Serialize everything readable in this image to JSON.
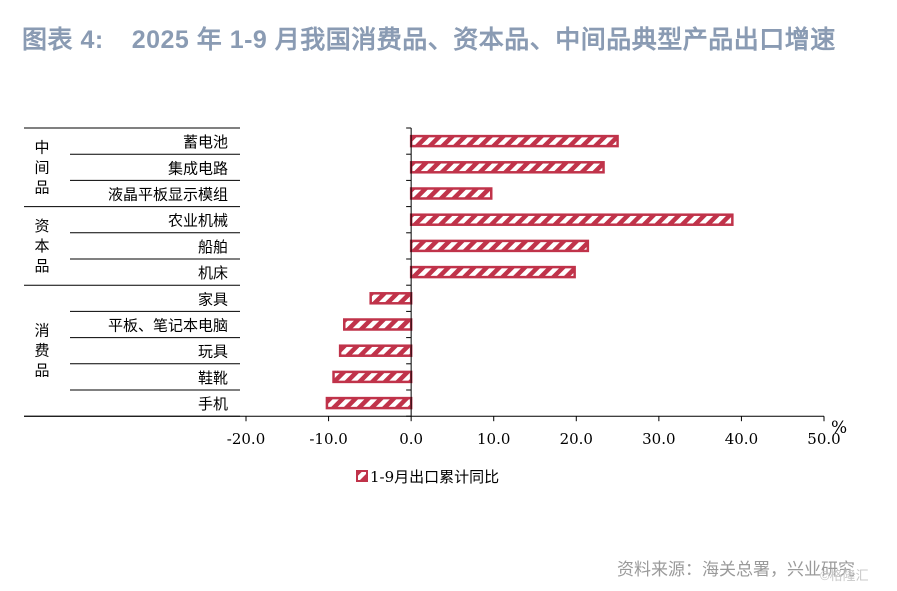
{
  "title": {
    "figure_number": "图表 4:",
    "text": "2025 年 1-9 月我国消费品、资本品、中间品典型产品出口增速"
  },
  "source": "资料来源：海关总署，兴业研究",
  "watermark": "©格隆汇",
  "colors": {
    "bar": "#c0334a",
    "stripe": "#ffffff",
    "axis": "#000000",
    "title": "#8a9bb3"
  },
  "chart_data": {
    "type": "bar",
    "orientation": "horizontal",
    "categories": [
      "蓄电池",
      "集成电路",
      "液晶平板显示模组",
      "农业机械",
      "船舶",
      "机床",
      "家具",
      "平板、笔记本电脑",
      "玩具",
      "鞋靴",
      "手机"
    ],
    "groups": [
      {
        "name": "中间品",
        "categories": [
          "蓄电池",
          "集成电路",
          "液晶平板显示模组"
        ]
      },
      {
        "name": "资本品",
        "categories": [
          "农业机械",
          "船舶",
          "机床"
        ]
      },
      {
        "name": "消费品",
        "categories": [
          "家具",
          "平板、笔记本电脑",
          "玩具",
          "鞋靴",
          "手机"
        ]
      }
    ],
    "series": [
      {
        "name": "1-9月出口累计同比",
        "values": [
          25.0,
          23.3,
          9.7,
          38.9,
          21.4,
          19.8,
          -4.9,
          -8.1,
          -8.6,
          -9.4,
          -10.2
        ]
      }
    ],
    "xlim": [
      -20,
      50
    ],
    "xticks": [
      "-20.0",
      "-10.0",
      "0.0",
      "10.0",
      "20.0",
      "30.0",
      "40.0",
      "50.0"
    ],
    "xunit": "%",
    "legend_position": "bottom-center",
    "grid": false
  }
}
